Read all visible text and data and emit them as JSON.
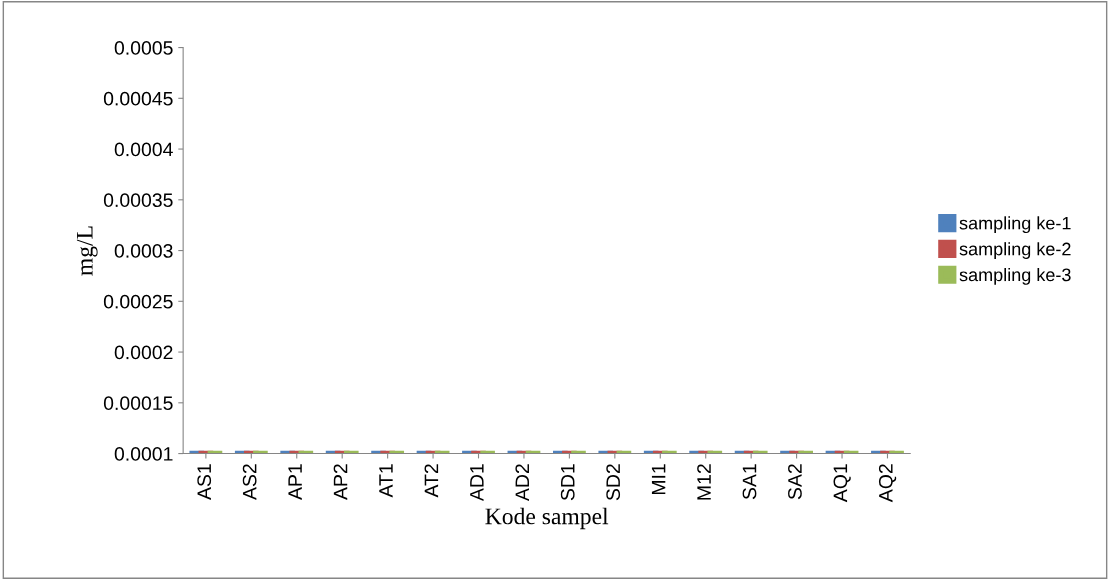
{
  "chart_data": {
    "type": "bar",
    "xlabel": "Kode sampel",
    "ylabel": "mg/L",
    "categories": [
      "AS1",
      "AS2",
      "AP1",
      "AP2",
      "AT1",
      "AT2",
      "AD1",
      "AD2",
      "SD1",
      "SD2",
      "MI1",
      "M12",
      "SA1",
      "SA2",
      "AQ1",
      "AQ2"
    ],
    "series": [
      {
        "name": "sampling ke-1",
        "color": "#4f81bd",
        "values": [
          0.0001,
          0.0001,
          0.0001,
          0.0001,
          0.0001,
          0.0001,
          0.0001,
          0.0001,
          0.0001,
          0.0001,
          0.0001,
          0.0001,
          0.0001,
          0.0001,
          0.0001,
          0.0001
        ]
      },
      {
        "name": "sampling ke-2",
        "color": "#c0504d",
        "values": [
          0.0001,
          0.0001,
          0.0001,
          0.0001,
          0.0001,
          0.0001,
          0.0001,
          0.0001,
          0.0001,
          0.0001,
          0.0001,
          0.0001,
          0.0001,
          0.0001,
          0.0001,
          0.0001
        ]
      },
      {
        "name": "sampling ke-3",
        "color": "#9bbb59",
        "values": [
          0.0001,
          0.0001,
          0.0001,
          0.0001,
          0.0001,
          0.0001,
          0.0001,
          0.0001,
          0.0001,
          0.0001,
          0.0001,
          0.0001,
          0.0001,
          0.0001,
          0.0001,
          0.0001
        ]
      }
    ],
    "ylim": [
      0.0001,
      0.0005
    ],
    "yticks": [
      0.0001,
      0.00015,
      0.0002,
      0.00025,
      0.0003,
      0.00035,
      0.0004,
      0.00045,
      0.0005
    ],
    "grid": false,
    "legend": "right"
  }
}
